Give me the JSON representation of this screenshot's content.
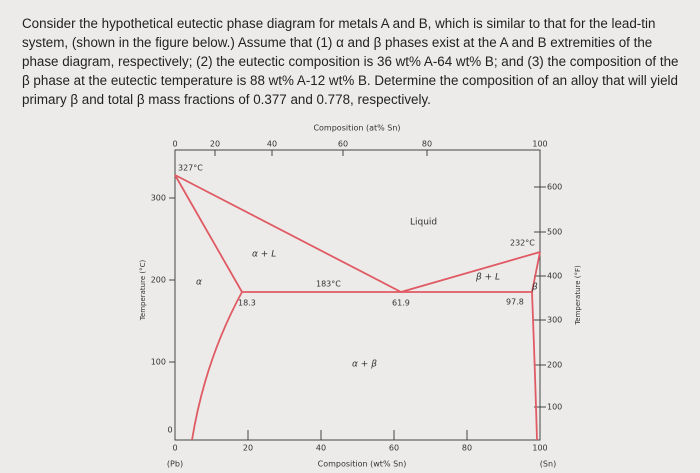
{
  "question": {
    "text": "Consider the hypothetical eutectic phase diagram for metals A and B, which is similar to that for the lead-tin system, (shown in the figure below.) Assume that (1) α and β phases exist at the A and B extremities of the phase diagram, respectively; (2) the eutectic composition is 36 wt% A-64 wt% B; and (3) the composition of the β phase at the eutectic temperature is 88 wt% A-12 wt% B. Determine the composition of an alloy that will yield primary β and total β mass fractions of 0.377 and 0.778, respectively."
  },
  "figure": {
    "top_axis_title": "Composition (at% Sn)",
    "top_ticks": [
      "0",
      "20",
      "40",
      "60",
      "80",
      "100"
    ],
    "bottom_axis_title": "Composition (wt% Sn)",
    "bottom_ticks": [
      "0",
      "20",
      "40",
      "60",
      "80",
      "100"
    ],
    "left_axis_title": "Temperature (°C)",
    "left_ticks": [
      "300",
      "200",
      "100",
      "0"
    ],
    "right_axis_title": "Temperature (°F)",
    "right_ticks": [
      "600",
      "500",
      "400",
      "300",
      "200",
      "100"
    ],
    "left_end_label": "(Pb)",
    "right_end_label": "(Sn)",
    "labels": {
      "pb_melt": "327°C",
      "sn_melt": "232°C",
      "eutectic_temp": "183°C",
      "alpha_comp": "18.3",
      "eutectic_comp": "61.9",
      "beta_comp": "97.8",
      "liquid": "Liquid",
      "alpha_l": "α + L",
      "beta_l": "β + L",
      "alpha_beta": "α + β",
      "alpha": "α",
      "beta": "β"
    }
  }
}
